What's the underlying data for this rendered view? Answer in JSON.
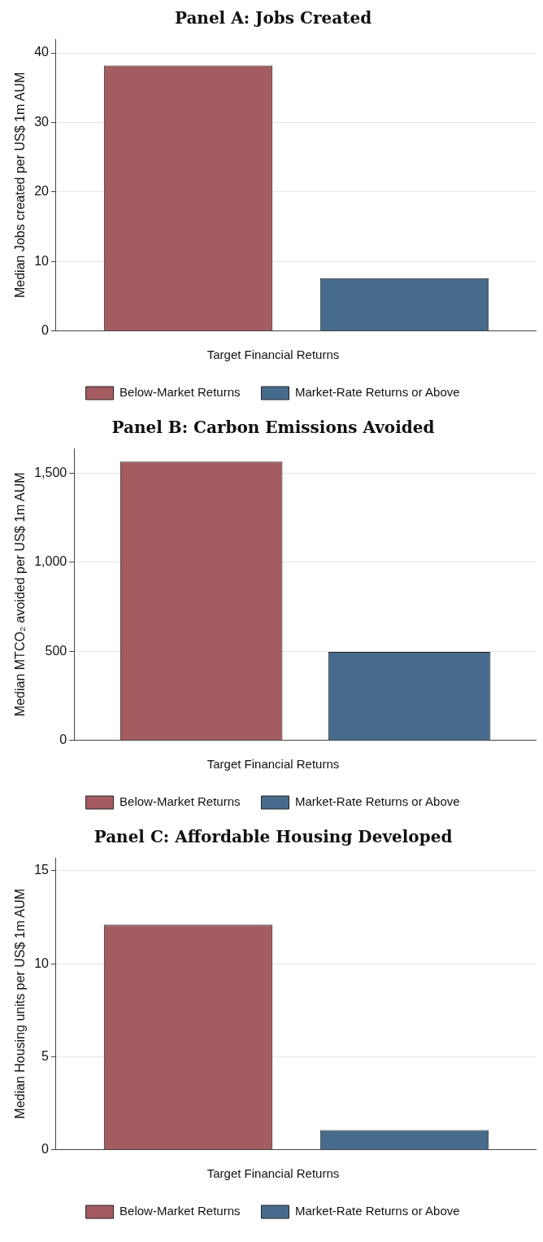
{
  "chart_data": [
    {
      "type": "bar",
      "title": "Panel A: Jobs Created",
      "ylabel": "Median Jobs created per US$ 1m AUM",
      "categories": [
        null
      ],
      "series": [
        {
          "name": "Below-Market Returns",
          "color": "#a45c60",
          "values": [
            38.2
          ]
        },
        {
          "name": "Market-Rate Returns or Above",
          "color": "#476b8c",
          "values": [
            7.6
          ]
        }
      ],
      "ylim": [
        0,
        42
      ],
      "yticks": [
        0,
        10,
        20,
        30,
        40
      ],
      "grid": "y",
      "legend": "bottom",
      "legend_title": "Target Financial Returns"
    },
    {
      "type": "bar",
      "title": "Panel B: Carbon Emissions Avoided",
      "ylabel": "Median MTCO₂ avoided per US$ 1m AUM",
      "categories": [
        null
      ],
      "series": [
        {
          "name": "Below-Market Returns",
          "color": "#a45c60",
          "values": [
            1566
          ]
        },
        {
          "name": "Market-Rate Returns or Above",
          "color": "#476b8c",
          "values": [
            497
          ]
        }
      ],
      "ylim": [
        0,
        1640
      ],
      "yticks": [
        0,
        {
          "value": 500,
          "label": "500"
        },
        {
          "value": 1000,
          "label": "1,000"
        },
        {
          "value": 1500,
          "label": "1,500"
        }
      ],
      "grid": "y",
      "legend": "bottom",
      "legend_title": "Target Financial Returns"
    },
    {
      "type": "bar",
      "title": "Panel C: Affordable Housing Developed",
      "ylabel": "Median Housing units per US$ 1m AUM",
      "categories": [
        null
      ],
      "series": [
        {
          "name": "Below-Market Returns",
          "color": "#a45c60",
          "values": [
            12.1
          ]
        },
        {
          "name": "Market-Rate Returns or Above",
          "color": "#476b8c",
          "values": [
            1.05
          ]
        }
      ],
      "ylim": [
        0,
        15.7
      ],
      "yticks": [
        0,
        5,
        10,
        15
      ],
      "grid": "y",
      "legend": "bottom",
      "legend_title": "Target Financial Returns"
    }
  ]
}
